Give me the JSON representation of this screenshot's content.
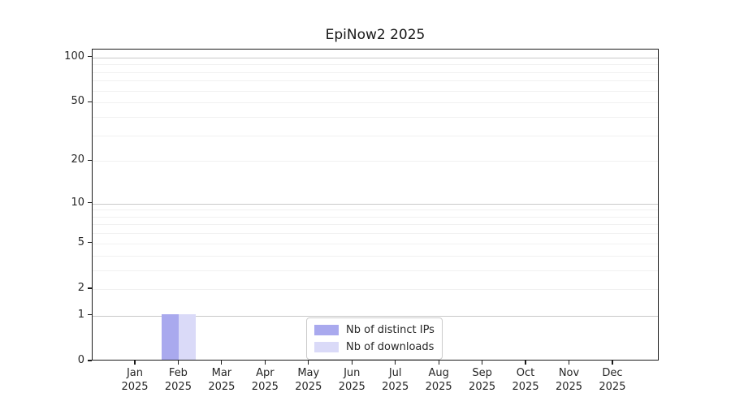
{
  "chart_data": {
    "type": "bar",
    "title": "EpiNow2 2025",
    "yscale": "log1p",
    "ylim": [
      0,
      113
    ],
    "yticks": [
      0,
      1,
      2,
      5,
      10,
      20,
      50,
      100
    ],
    "gridlines_major": [
      1,
      10,
      100
    ],
    "gridlines_minor": [
      2,
      3,
      4,
      5,
      6,
      7,
      8,
      9,
      20,
      30,
      40,
      50,
      60,
      70,
      80,
      90
    ],
    "categories": [
      "Jan",
      "Feb",
      "Mar",
      "Apr",
      "May",
      "Jun",
      "Jul",
      "Aug",
      "Sep",
      "Oct",
      "Nov",
      "Dec"
    ],
    "year": "2025",
    "series": [
      {
        "name": "Nb of distinct IPs",
        "color": "#a9a9ee",
        "values": [
          0,
          1,
          0,
          0,
          0,
          0,
          0,
          0,
          0,
          0,
          0,
          0
        ]
      },
      {
        "name": "Nb of downloads",
        "color": "#dadaf8",
        "values": [
          0,
          1,
          0,
          0,
          0,
          0,
          0,
          0,
          0,
          0,
          0,
          0
        ]
      }
    ],
    "legend_position": "lower center",
    "grid": true,
    "xlabel": "",
    "ylabel": ""
  },
  "colors": {
    "spine": "#1a1a1a",
    "tick_label": "#262626",
    "grid_major": "#c9c9c9",
    "grid_minor": "#f1f1f1",
    "legend_border": "#cccccc"
  }
}
